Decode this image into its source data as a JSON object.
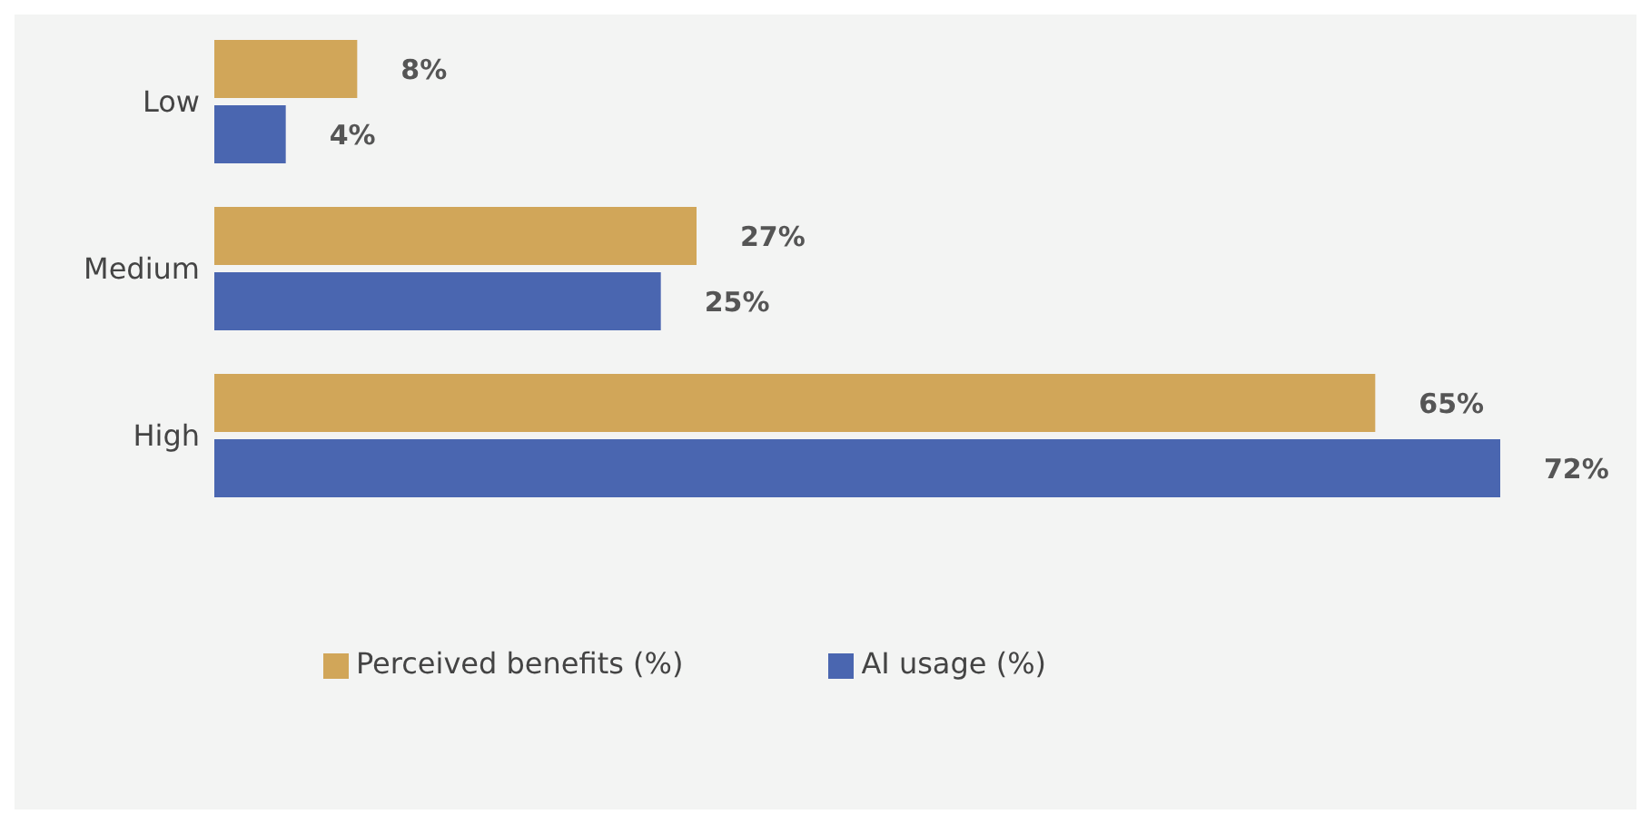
{
  "chart_data": {
    "type": "bar",
    "orientation": "horizontal",
    "categories": [
      "Low",
      "Medium",
      "High"
    ],
    "legend": "bottom",
    "series": [
      {
        "name": "Perceived benefits (%)",
        "color": "#d1a659",
        "values": [
          8,
          27,
          65
        ],
        "value_labels": [
          "8%",
          "27%",
          "65%"
        ]
      },
      {
        "name": "AI usage (%)",
        "color": "#4a66b0",
        "values": [
          4,
          25,
          72
        ],
        "value_labels": [
          "4%",
          "25%",
          "72%"
        ]
      }
    ]
  }
}
